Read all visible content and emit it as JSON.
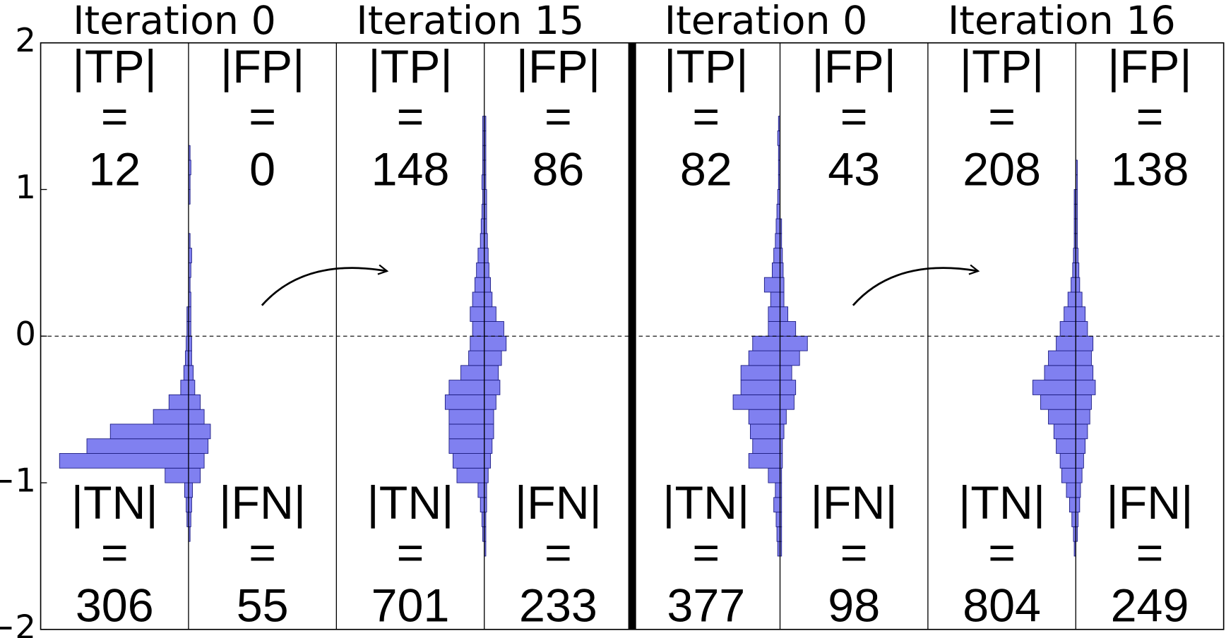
{
  "chart_data": {
    "type": "histogram",
    "ylim": [
      -2,
      2
    ],
    "yticks": [
      {
        "value": -2,
        "label": "−2"
      },
      {
        "value": -1,
        "label": "−1"
      },
      0,
      1,
      2
    ],
    "zero_line": true,
    "color": "#8080f0",
    "edge_color": "#1a1a80",
    "quadrant_labels": {
      "tp": "|TP|",
      "fp": "|FP|",
      "tn": "|TN|",
      "fn": "|FN|"
    },
    "equals": "=",
    "bins": [
      -1.5,
      -1.4,
      -1.3,
      -1.2,
      -1.1,
      -1.0,
      -0.9,
      -0.8,
      -0.7,
      -0.6,
      -0.5,
      -0.4,
      -0.3,
      -0.2,
      -0.1,
      0,
      0.1,
      0.2,
      0.3,
      0.4,
      0.5,
      0.6,
      0.7,
      0.8,
      0.9,
      1.0,
      1.1,
      1.2,
      1.3,
      1.4,
      1.5
    ],
    "panels": [
      {
        "title": "Iteration 0",
        "tp": 12,
        "fp": 0,
        "tn": 306,
        "fn": 55,
        "left_counts": [
          0,
          0,
          2,
          3,
          5,
          30,
          165,
          130,
          100,
          45,
          25,
          10,
          6,
          4,
          3,
          2,
          2,
          0,
          0,
          0,
          0,
          0,
          0,
          0,
          0,
          0,
          0,
          0,
          0,
          0
        ],
        "right_counts": [
          0,
          2,
          3,
          4,
          5,
          15,
          20,
          25,
          28,
          20,
          15,
          8,
          6,
          4,
          4,
          3,
          3,
          3,
          2,
          3,
          4,
          2,
          0,
          0,
          2,
          2,
          3,
          2,
          0,
          0
        ]
      },
      {
        "title": "Iteration 15",
        "tp": 148,
        "fp": 86,
        "tn": 701,
        "fn": 233,
        "left_counts": [
          0,
          2,
          3,
          5,
          8,
          35,
          40,
          45,
          45,
          45,
          50,
          45,
          30,
          20,
          18,
          15,
          18,
          15,
          12,
          10,
          8,
          5,
          4,
          3,
          2,
          3,
          2,
          2,
          2,
          2
        ],
        "right_counts": [
          2,
          2,
          2,
          3,
          3,
          5,
          8,
          10,
          12,
          12,
          15,
          20,
          18,
          22,
          28,
          25,
          15,
          10,
          8,
          6,
          5,
          4,
          3,
          3,
          3,
          2,
          2,
          2,
          2,
          2
        ]
      },
      {
        "title": "Iteration 0",
        "tp": 82,
        "fp": 43,
        "tn": 377,
        "fn": 98,
        "left_counts": [
          3,
          4,
          5,
          8,
          6,
          15,
          40,
          35,
          38,
          40,
          60,
          50,
          50,
          40,
          35,
          15,
          15,
          12,
          20,
          10,
          8,
          6,
          5,
          4,
          3,
          2,
          2,
          2,
          3,
          2
        ],
        "right_counts": [
          2,
          2,
          2,
          2,
          2,
          2,
          3,
          3,
          5,
          8,
          18,
          20,
          15,
          25,
          35,
          20,
          10,
          5,
          5,
          4,
          3,
          2,
          2,
          0,
          0,
          0,
          0,
          0,
          0,
          0
        ]
      },
      {
        "title": "Iteration 16",
        "tp": 208,
        "fp": 138,
        "tn": 804,
        "fn": 249,
        "left_counts": [
          2,
          3,
          5,
          8,
          12,
          18,
          20,
          25,
          28,
          35,
          45,
          55,
          40,
          35,
          25,
          20,
          15,
          10,
          6,
          4,
          3,
          2,
          2,
          2,
          2,
          0,
          0,
          0,
          0,
          0
        ],
        "right_counts": [
          0,
          2,
          3,
          5,
          6,
          8,
          10,
          12,
          15,
          18,
          20,
          25,
          22,
          20,
          22,
          15,
          12,
          8,
          5,
          4,
          3,
          2,
          2,
          2,
          2,
          2,
          2,
          0,
          0,
          0
        ]
      }
    ]
  }
}
